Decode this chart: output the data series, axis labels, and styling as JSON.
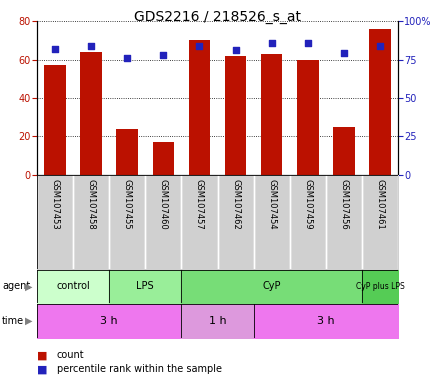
{
  "title": "GDS2216 / 218526_s_at",
  "samples": [
    "GSM107453",
    "GSM107458",
    "GSM107455",
    "GSM107460",
    "GSM107457",
    "GSM107462",
    "GSM107454",
    "GSM107459",
    "GSM107456",
    "GSM107461"
  ],
  "counts": [
    57,
    64,
    24,
    17,
    70,
    62,
    63,
    60,
    25,
    76
  ],
  "percentile_ranks": [
    82,
    84,
    76,
    78,
    84,
    81,
    86,
    86,
    79,
    84
  ],
  "left_ylim": [
    0,
    80
  ],
  "right_ylim": [
    0,
    100
  ],
  "left_yticks": [
    0,
    20,
    40,
    60,
    80
  ],
  "right_yticks": [
    0,
    25,
    50,
    75,
    100
  ],
  "right_yticklabels": [
    "0",
    "25",
    "50",
    "75",
    "100%"
  ],
  "bar_color": "#bb1100",
  "dot_color": "#2222bb",
  "agent_groups": [
    {
      "label": "control",
      "start": 0,
      "end": 2,
      "color": "#ccffcc"
    },
    {
      "label": "LPS",
      "start": 2,
      "end": 4,
      "color": "#99ee99"
    },
    {
      "label": "CyP",
      "start": 4,
      "end": 9,
      "color": "#77dd77"
    },
    {
      "label": "CyP plus LPS",
      "start": 9,
      "end": 10,
      "color": "#55cc55"
    }
  ],
  "time_groups": [
    {
      "label": "3 h",
      "start": 0,
      "end": 4,
      "color": "#ee77ee"
    },
    {
      "label": "1 h",
      "start": 4,
      "end": 6,
      "color": "#dd99dd"
    },
    {
      "label": "3 h",
      "start": 6,
      "end": 10,
      "color": "#ee77ee"
    }
  ],
  "legend_count_color": "#bb1100",
  "legend_pct_color": "#2222bb",
  "title_fontsize": 10,
  "tick_fontsize": 7,
  "sample_fontsize": 6,
  "group_fontsize": 7,
  "time_fontsize": 8,
  "legend_fontsize": 7
}
